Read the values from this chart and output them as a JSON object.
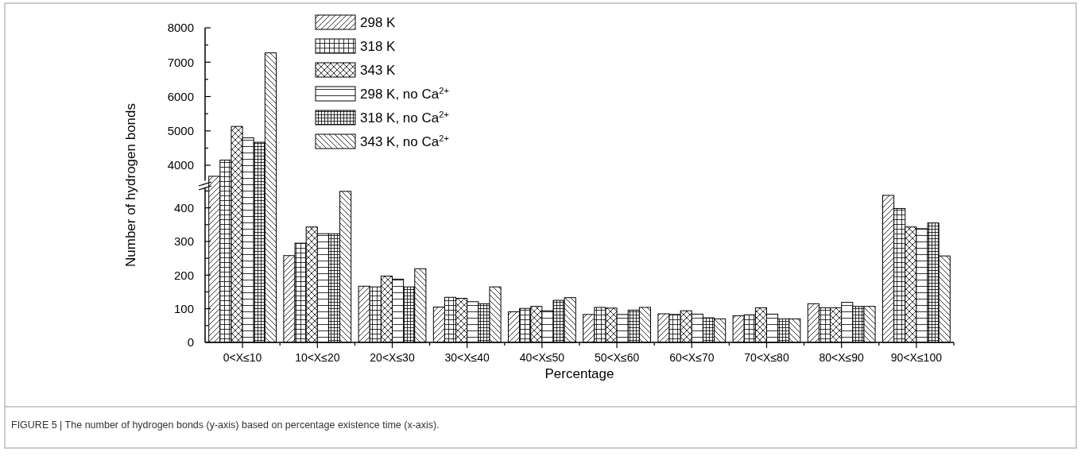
{
  "chart_data": [
    {
      "type": "bar",
      "ylabel": "Number of hydrogen bonds",
      "legend": "top right",
      "categories": [
        null
      ],
      "ylim": [
        3550,
        8000
      ],
      "yticks": [
        {
          "value": 4000,
          "label": "4000"
        },
        {
          "value": 4500,
          "label": null
        },
        {
          "value": 5000,
          "label": "5000"
        },
        {
          "value": 5500,
          "label": null
        },
        {
          "value": 6000,
          "label": "6000"
        },
        {
          "value": 6500,
          "label": null
        },
        {
          "value": 7000,
          "label": "7000"
        },
        {
          "value": 7500,
          "label": null
        },
        {
          "value": 8000,
          "label": "8000"
        }
      ],
      "tick_labels": "y",
      "series": [
        {
          "name": "298 K",
          "color": "#000000",
          "values": [
            3680
          ]
        },
        {
          "name": "318 K",
          "color": "#000000",
          "values": [
            4150
          ]
        },
        {
          "name": "343 K",
          "color": "#000000",
          "values": [
            5130
          ]
        },
        {
          "name": "298 K, no Ca$^{2+}$",
          "color": "#000000",
          "values": [
            4800
          ]
        },
        {
          "name": "318 K, no Ca$^{2+}$",
          "color": "#000000",
          "values": [
            4670
          ]
        },
        {
          "name": "343 K, no Ca$^{2+}$",
          "color": "#000000",
          "values": [
            7270
          ]
        }
      ]
    },
    {
      "type": "bar",
      "xlabel": "Percentage",
      "annotations": [
        "FIGURE 5 | The number of hydrogen bonds (y-axis) based on percentage existence time (x-axis)."
      ],
      "categories": [
        "0<X≤10",
        "10<X≤20",
        "20<X≤30",
        "30<X≤40",
        "40<X≤50",
        "50<X≤60",
        "60<X≤70",
        "70<X≤80",
        "80<X≤90",
        "90<X≤100"
      ],
      "ylim": [
        0,
        460
      ],
      "yticks": [
        {
          "value": 0,
          "label": "0"
        },
        {
          "value": 50,
          "label": null
        },
        {
          "value": 100,
          "label": "100"
        },
        {
          "value": 150,
          "label": null
        },
        {
          "value": 200,
          "label": "200"
        },
        {
          "value": 250,
          "label": null
        },
        {
          "value": 300,
          "label": "300"
        },
        {
          "value": 350,
          "label": null
        },
        {
          "value": 400,
          "label": "400"
        },
        {
          "value": 450,
          "label": null
        }
      ],
      "series": [
        {
          "color": "#000000",
          "values": [
            null,
            258,
            167,
            105,
            91,
            83,
            85,
            79,
            115,
            437
          ]
        },
        {
          "color": "#000000",
          "values": [
            null,
            295,
            165,
            134,
            101,
            104,
            83,
            82,
            103,
            398
          ]
        },
        {
          "color": "#000000",
          "values": [
            null,
            343,
            197,
            131,
            107,
            102,
            94,
            103,
            103,
            343
          ]
        },
        {
          "color": "#000000",
          "values": [
            null,
            323,
            188,
            121,
            94,
            83,
            84,
            84,
            119,
            338
          ]
        },
        {
          "color": "#000000",
          "values": [
            null,
            323,
            165,
            115,
            125,
            96,
            73,
            70,
            107,
            355
          ]
        },
        {
          "color": "#000000",
          "values": [
            null,
            449,
            219,
            165,
            133,
            104,
            70,
            70,
            107,
            257
          ]
        }
      ]
    }
  ]
}
